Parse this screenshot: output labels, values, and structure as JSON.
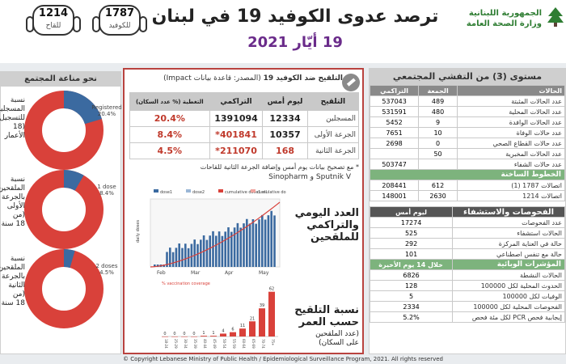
{
  "header": {
    "title": "ترصد عدوى الكوفيد 19 في لبنان",
    "date": "19 أيّار 2021",
    "ministry_line1": "الجمهورية اللبنانية",
    "ministry_line2": "وزارة الصحة العامة",
    "hotline_vaccine": {
      "number": "1214",
      "label": "للقاح"
    },
    "hotline_covid": {
      "number": "1787",
      "label": "للكوفيد"
    }
  },
  "left": {
    "title": "نحو مناعة المجتمع",
    "donuts": [
      {
        "label": "Registered",
        "percent": "20.4%",
        "fraction": 0.204,
        "side_lines": [
          "نسبة المسجلين",
          "للتسجيل (18",
          "الأعمار"
        ]
      },
      {
        "label": "1 dose",
        "percent": "8.4%",
        "fraction": 0.084,
        "side_lines": [
          "نسبة الملقحين",
          "بالجرعة",
          "الأولى (من",
          "18 سنة"
        ]
      },
      {
        "label": "2 doses",
        "percent": "4.5%",
        "fraction": 0.045,
        "side_lines": [
          "نسبة الملقحين",
          "بالجرعة",
          "الثانية (من",
          "18 سنة"
        ]
      }
    ]
  },
  "middle": {
    "title": "التلقيح ضد الكوفيد 19",
    "source": "(المصدر: قاعدة بيانات Impact)",
    "headers": {
      "vaccination": "التلقيح",
      "today": "ليوم أمس",
      "cumulative": "التراكمي",
      "coverage": "التغطية (% عدد السكان)"
    },
    "rows": [
      {
        "name": "المسجلين",
        "today": "12334",
        "cumulative": "1391094",
        "coverage": "20.4%"
      },
      {
        "name": "الجرعة الأولى",
        "today": "10357",
        "cumulative": "401841*",
        "coverage": "8.4%"
      },
      {
        "name": "الجرعة الثانية",
        "today": "168",
        "cumulative": "211070*",
        "coverage": "4.5%"
      }
    ],
    "note1": "* مع تصحيح بيانات يوم أمس وإضافة الجرعة الثانية للقاحات",
    "note2": "Sinopharm و Sputnik V",
    "daily_text": [
      "العدد اليومي",
      "والتراكمي",
      "للملقحين"
    ],
    "age_text": [
      "نسبة التلقيح",
      "حسب العمر"
    ],
    "age_sub": [
      "(عدد الملقحين",
      "على السكان)"
    ],
    "chart_daily": {
      "legend": [
        "dose1",
        "dose2",
        "cumulative dose1 all",
        "cumulative dose2 all"
      ],
      "ylabel": "daily doses",
      "months": [
        "Feb",
        "Mar",
        "Apr",
        "May"
      ]
    },
    "chart_age": {
      "legend": "% vaccination coverage",
      "values": [
        0,
        0,
        0,
        0,
        1,
        1,
        4,
        6,
        11,
        21,
        39,
        62
      ],
      "labels": [
        "0",
        "0",
        "0",
        "0",
        "1",
        "1",
        "4",
        "6",
        "11",
        "21",
        "39",
        "62"
      ],
      "categories": [
        "18-24",
        "25-29",
        "30-34",
        "35-39",
        "40-44",
        "45-49",
        "50-54",
        "55-59",
        "60-64",
        "65-69",
        "70-74",
        "75+"
      ]
    }
  },
  "right": {
    "title": "مستوى (3) من التفشي المجتمعي",
    "cases_head": {
      "label": "الحالات",
      "col1": "الجمعة",
      "col2": "التراكمي"
    },
    "cases": [
      {
        "label": "عدد الحالات المثبتة",
        "day": "489",
        "total": "537043"
      },
      {
        "label": "عدد الحالات المحلية",
        "day": "480",
        "total": "531591"
      },
      {
        "label": "عدد الحالات الوافدة",
        "day": "9",
        "total": "5452"
      },
      {
        "label": "عدد حالات الوفاة",
        "day": "10",
        "total": "7651"
      },
      {
        "label": "عدد حالات القطاع الصحي",
        "day": "0",
        "total": "2698"
      },
      {
        "label": "عدد الحالات المخبرية",
        "day": "50",
        "total": ""
      },
      {
        "label": "عدد حالات الشفاء",
        "day": "",
        "total": "503747"
      }
    ],
    "hotline_head": "الخطوط الساخنة",
    "hotline_rows": [
      {
        "label": "اتصالات 1787 (1)",
        "day": "612",
        "total": "208441"
      },
      {
        "label": "اتصالات 1214",
        "day": "2630",
        "total": "148001"
      }
    ],
    "tests_head": "الفحوصات والاستشفاء",
    "tests_col": "ليوم أمس",
    "tests": [
      {
        "label": "عدد الفحوصات",
        "value": "17274"
      },
      {
        "label": "الحالات استشفاء",
        "value": "525"
      },
      {
        "label": "حالة في العناية المركزة",
        "value": "292"
      },
      {
        "label": "حالة مع تنفس اصطناعي",
        "value": "101"
      }
    ],
    "indicators_head": "المؤشرات الوبائية",
    "indicators_col": "خلال 14 يوم الأخيرة",
    "indicators": [
      {
        "label": "الحالات النشطة",
        "value": "6826"
      },
      {
        "label": "الحدوث المحلية لكل 100000",
        "value": "128"
      },
      {
        "label": "الوفيات لكل 100000",
        "value": "5"
      },
      {
        "label": "الفحوصات المحلية لكل 100000",
        "value": "2334"
      },
      {
        "label": "إيجابية فحص PCR لكل مئة فحص",
        "value": "5.2%"
      }
    ]
  },
  "footer": "© Copyright Lebanese Ministry of Public Health / Epidemiological Surveillance Program, 2021. All rights reserved",
  "colors": {
    "accent_red": "#c0392b",
    "purple": "#6a2b8a",
    "bar_blue": "#3b6aa0",
    "line_red": "#d9413a"
  }
}
